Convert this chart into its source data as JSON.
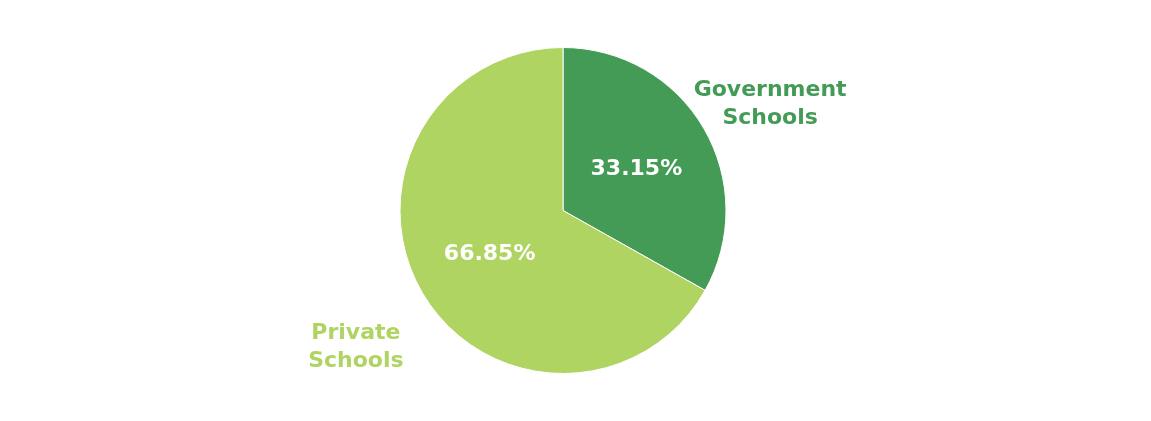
{
  "chart_data": {
    "type": "pie",
    "categories": [
      "Government Schools",
      "Private Schools"
    ],
    "values": [
      33.15,
      66.85
    ],
    "colors": [
      "#439b55",
      "#afd461"
    ],
    "value_labels": [
      "33.15%",
      "66.85%"
    ]
  }
}
